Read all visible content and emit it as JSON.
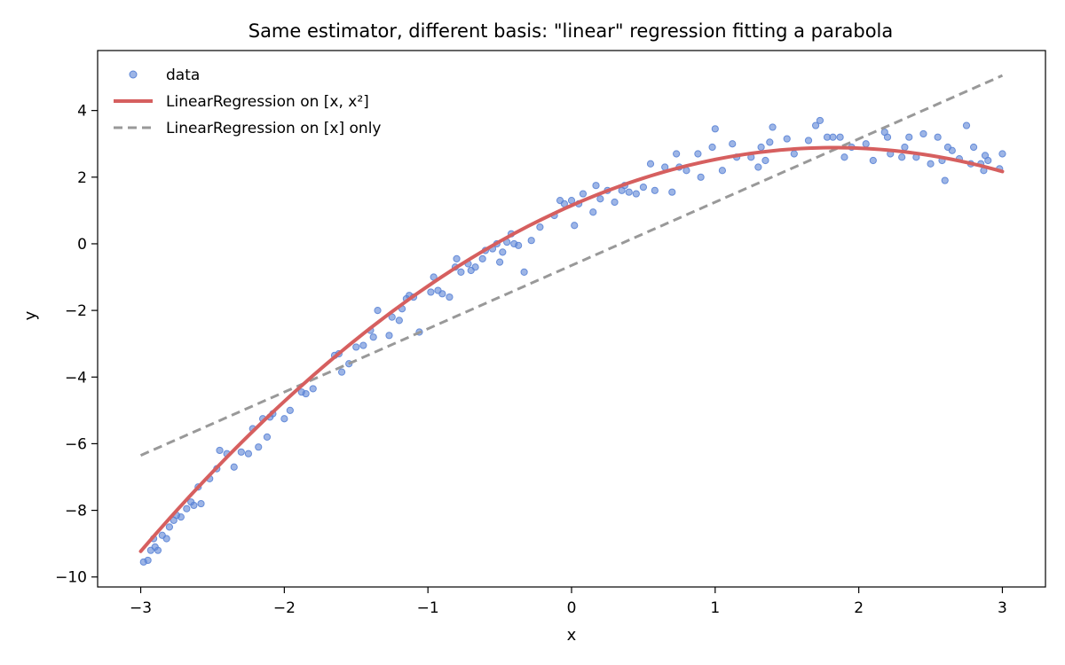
{
  "chart_data": {
    "type": "scatter",
    "title": "Same estimator, different basis: \"linear\" regression fitting a parabola",
    "xlabel": "x",
    "ylabel": "y",
    "xlim": [
      -3.3,
      3.3
    ],
    "ylim": [
      -10.3,
      5.8
    ],
    "xticks": [
      -3,
      -2,
      -1,
      0,
      1,
      2,
      3
    ],
    "xtick_labels": [
      "−3",
      "−2",
      "−1",
      "0",
      "1",
      "2",
      "3"
    ],
    "yticks": [
      -10,
      -8,
      -6,
      -4,
      -2,
      0,
      2,
      4
    ],
    "ytick_labels": [
      "−10",
      "−8",
      "−6",
      "−4",
      "−2",
      "0",
      "2",
      "4"
    ],
    "grid": false,
    "legend_position": "top-left",
    "colors": {
      "data": "#5b84d6",
      "quadratic": "#d65f5f",
      "linear": "#999999"
    },
    "series": [
      {
        "name": "data",
        "kind": "scatter",
        "points": [
          [
            -2.98,
            -9.55
          ],
          [
            -2.95,
            -9.5
          ],
          [
            -2.93,
            -9.2
          ],
          [
            -2.91,
            -8.85
          ],
          [
            -2.9,
            -9.1
          ],
          [
            -2.88,
            -9.2
          ],
          [
            -2.85,
            -8.75
          ],
          [
            -2.82,
            -8.85
          ],
          [
            -2.8,
            -8.5
          ],
          [
            -2.77,
            -8.3
          ],
          [
            -2.75,
            -8.15
          ],
          [
            -2.72,
            -8.2
          ],
          [
            -2.68,
            -7.95
          ],
          [
            -2.65,
            -7.75
          ],
          [
            -2.63,
            -7.85
          ],
          [
            -2.6,
            -7.3
          ],
          [
            -2.58,
            -7.8
          ],
          [
            -2.52,
            -7.05
          ],
          [
            -2.47,
            -6.75
          ],
          [
            -2.45,
            -6.2
          ],
          [
            -2.4,
            -6.3
          ],
          [
            -2.35,
            -6.7
          ],
          [
            -2.3,
            -6.25
          ],
          [
            -2.25,
            -6.3
          ],
          [
            -2.22,
            -5.55
          ],
          [
            -2.18,
            -6.1
          ],
          [
            -2.15,
            -5.25
          ],
          [
            -2.12,
            -5.8
          ],
          [
            -2.1,
            -5.2
          ],
          [
            -2.08,
            -5.1
          ],
          [
            -2.0,
            -5.25
          ],
          [
            -1.96,
            -5.0
          ],
          [
            -1.88,
            -4.45
          ],
          [
            -1.85,
            -4.5
          ],
          [
            -1.8,
            -4.35
          ],
          [
            -1.65,
            -3.35
          ],
          [
            -1.62,
            -3.3
          ],
          [
            -1.6,
            -3.85
          ],
          [
            -1.55,
            -3.6
          ],
          [
            -1.5,
            -3.1
          ],
          [
            -1.45,
            -3.05
          ],
          [
            -1.4,
            -2.6
          ],
          [
            -1.38,
            -2.8
          ],
          [
            -1.35,
            -2.0
          ],
          [
            -1.27,
            -2.75
          ],
          [
            -1.25,
            -2.2
          ],
          [
            -1.2,
            -2.3
          ],
          [
            -1.18,
            -1.95
          ],
          [
            -1.15,
            -1.65
          ],
          [
            -1.13,
            -1.55
          ],
          [
            -1.1,
            -1.6
          ],
          [
            -1.06,
            -2.65
          ],
          [
            -0.98,
            -1.45
          ],
          [
            -0.96,
            -1.0
          ],
          [
            -0.93,
            -1.4
          ],
          [
            -0.9,
            -1.5
          ],
          [
            -0.85,
            -1.6
          ],
          [
            -0.81,
            -0.7
          ],
          [
            -0.8,
            -0.45
          ],
          [
            -0.77,
            -0.85
          ],
          [
            -0.72,
            -0.6
          ],
          [
            -0.7,
            -0.8
          ],
          [
            -0.67,
            -0.7
          ],
          [
            -0.62,
            -0.45
          ],
          [
            -0.6,
            -0.2
          ],
          [
            -0.55,
            -0.15
          ],
          [
            -0.52,
            0.0
          ],
          [
            -0.5,
            -0.55
          ],
          [
            -0.48,
            -0.25
          ],
          [
            -0.45,
            0.05
          ],
          [
            -0.42,
            0.3
          ],
          [
            -0.4,
            0.0
          ],
          [
            -0.37,
            -0.05
          ],
          [
            -0.33,
            -0.85
          ],
          [
            -0.28,
            0.1
          ],
          [
            -0.22,
            0.5
          ],
          [
            -0.12,
            0.85
          ],
          [
            -0.08,
            1.3
          ],
          [
            -0.05,
            1.2
          ],
          [
            0.0,
            1.3
          ],
          [
            0.02,
            0.55
          ],
          [
            0.05,
            1.2
          ],
          [
            0.08,
            1.5
          ],
          [
            0.15,
            0.95
          ],
          [
            0.17,
            1.75
          ],
          [
            0.2,
            1.35
          ],
          [
            0.25,
            1.6
          ],
          [
            0.3,
            1.25
          ],
          [
            0.35,
            1.6
          ],
          [
            0.37,
            1.75
          ],
          [
            0.4,
            1.55
          ],
          [
            0.45,
            1.5
          ],
          [
            0.5,
            1.7
          ],
          [
            0.55,
            2.4
          ],
          [
            0.58,
            1.6
          ],
          [
            0.65,
            2.3
          ],
          [
            0.7,
            1.55
          ],
          [
            0.73,
            2.7
          ],
          [
            0.75,
            2.3
          ],
          [
            0.8,
            2.2
          ],
          [
            0.88,
            2.7
          ],
          [
            0.9,
            2.0
          ],
          [
            0.98,
            2.9
          ],
          [
            1.0,
            3.45
          ],
          [
            1.05,
            2.2
          ],
          [
            1.12,
            3.0
          ],
          [
            1.15,
            2.6
          ],
          [
            1.25,
            2.6
          ],
          [
            1.3,
            2.3
          ],
          [
            1.32,
            2.9
          ],
          [
            1.35,
            2.5
          ],
          [
            1.38,
            3.05
          ],
          [
            1.4,
            3.5
          ],
          [
            1.5,
            3.15
          ],
          [
            1.55,
            2.7
          ],
          [
            1.65,
            3.1
          ],
          [
            1.7,
            3.55
          ],
          [
            1.73,
            3.7
          ],
          [
            1.78,
            3.2
          ],
          [
            1.82,
            3.2
          ],
          [
            1.87,
            3.2
          ],
          [
            1.9,
            2.6
          ],
          [
            1.95,
            2.9
          ],
          [
            2.05,
            3.0
          ],
          [
            2.1,
            2.5
          ],
          [
            2.18,
            3.35
          ],
          [
            2.2,
            3.2
          ],
          [
            2.22,
            2.7
          ],
          [
            2.3,
            2.6
          ],
          [
            2.32,
            2.9
          ],
          [
            2.35,
            3.2
          ],
          [
            2.4,
            2.6
          ],
          [
            2.45,
            3.3
          ],
          [
            2.5,
            2.4
          ],
          [
            2.55,
            3.2
          ],
          [
            2.58,
            2.5
          ],
          [
            2.6,
            1.9
          ],
          [
            2.62,
            2.9
          ],
          [
            2.65,
            2.8
          ],
          [
            2.7,
            2.55
          ],
          [
            2.75,
            3.55
          ],
          [
            2.78,
            2.4
          ],
          [
            2.8,
            2.9
          ],
          [
            2.85,
            2.4
          ],
          [
            2.87,
            2.2
          ],
          [
            2.88,
            2.65
          ],
          [
            2.9,
            2.5
          ],
          [
            2.98,
            2.25
          ],
          [
            3.0,
            2.7
          ]
        ]
      },
      {
        "name": "LinearRegression on [x, x²]",
        "kind": "line",
        "style": "solid",
        "equation": {
          "a": -0.52,
          "b": 1.9,
          "c": 1.15
        },
        "x_range": [
          -3,
          3
        ]
      },
      {
        "name": "LinearRegression on [x] only",
        "kind": "line",
        "style": "dashed",
        "endpoints": [
          [
            -3,
            -6.35
          ],
          [
            3,
            5.05
          ]
        ]
      }
    ]
  }
}
